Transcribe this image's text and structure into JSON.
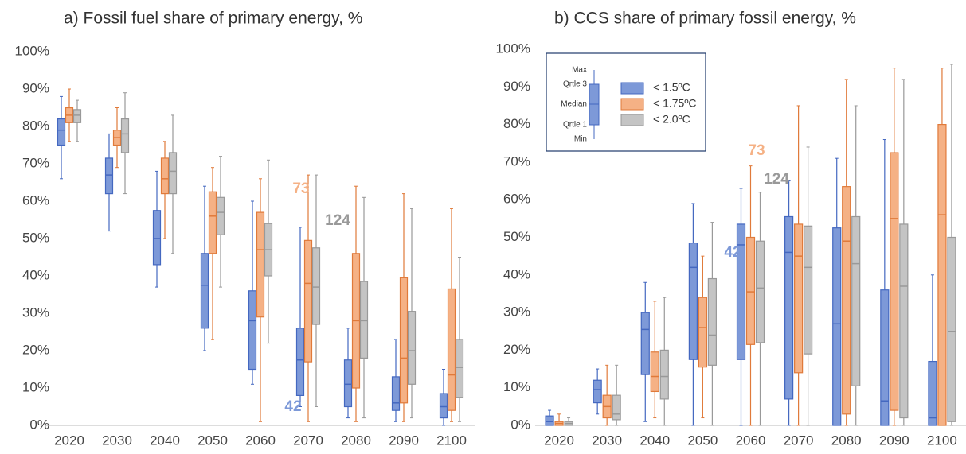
{
  "chart_data": [
    {
      "type": "box",
      "title": "a) Fossil fuel share of primary energy, %",
      "categories": [
        "2020",
        "2030",
        "2040",
        "2050",
        "2060",
        "2070",
        "2080",
        "2090",
        "2100"
      ],
      "ylim": [
        0,
        100
      ],
      "yticks": [
        {
          "value": 0,
          "label": "0%"
        },
        {
          "value": 10,
          "label": "10%"
        },
        {
          "value": 20,
          "label": "20%"
        },
        {
          "value": 30,
          "label": "30%"
        },
        {
          "value": 40,
          "label": "40%"
        },
        {
          "value": 50,
          "label": "50%"
        },
        {
          "value": 60,
          "label": "60%"
        },
        {
          "value": 70,
          "label": "70%"
        },
        {
          "value": 80,
          "label": "80%"
        },
        {
          "value": 90,
          "label": "90%"
        },
        {
          "value": 100,
          "label": "100%"
        }
      ],
      "grid": false,
      "series": [
        {
          "color": "#7d99d8",
          "edge_color": "#4468c0",
          "annotation": "42",
          "min": [
            66,
            52,
            37,
            20,
            11,
            5,
            2,
            1,
            0
          ],
          "q1": [
            75,
            62,
            43,
            26,
            15,
            8,
            5,
            4,
            2
          ],
          "median": [
            79,
            67,
            50,
            37.5,
            28,
            17.5,
            11,
            6,
            5
          ],
          "q3": [
            82,
            71.5,
            57.5,
            46,
            36,
            26,
            17.5,
            13,
            8.5
          ],
          "max": [
            88,
            78,
            68,
            64,
            60,
            53,
            26,
            23,
            15
          ]
        },
        {
          "color": "#f5b185",
          "edge_color": "#e07a3a",
          "annotation": "73",
          "min": [
            76,
            69,
            50,
            23,
            1,
            1,
            1,
            1,
            1
          ],
          "q1": [
            81,
            75,
            62,
            46,
            29,
            17,
            10,
            6,
            4
          ],
          "median": [
            83,
            77,
            66,
            56,
            47,
            38,
            28,
            18,
            13.5
          ],
          "q3": [
            85,
            79,
            71.5,
            62.5,
            57,
            49.5,
            46,
            39.5,
            36.5
          ],
          "max": [
            90,
            85,
            76,
            69,
            66,
            67,
            64,
            62,
            58
          ]
        },
        {
          "color": "#c4c4c4",
          "edge_color": "#999999",
          "annotation": "124",
          "min": [
            76,
            62,
            46,
            37,
            22,
            5,
            2,
            2,
            1
          ],
          "q1": [
            81,
            73,
            62,
            51,
            40,
            27,
            18,
            11,
            7.5
          ],
          "median": [
            83,
            78,
            68,
            57,
            47,
            37,
            28,
            20,
            15.5
          ],
          "q3": [
            84.5,
            82,
            73,
            61,
            54,
            47.5,
            38.5,
            30.5,
            23
          ],
          "max": [
            87,
            89,
            83,
            72,
            71,
            67,
            61,
            58,
            45
          ]
        }
      ]
    },
    {
      "type": "box",
      "title": "b) CCS share of primary fossil energy, %",
      "categories": [
        "2020",
        "2030",
        "2040",
        "2050",
        "2060",
        "2070",
        "2080",
        "2090",
        "2100"
      ],
      "ylim": [
        0,
        100
      ],
      "yticks": [
        {
          "value": 0,
          "label": "0%"
        },
        {
          "value": 10,
          "label": "10%"
        },
        {
          "value": 20,
          "label": "20%"
        },
        {
          "value": 30,
          "label": "30%"
        },
        {
          "value": 40,
          "label": "40%"
        },
        {
          "value": 50,
          "label": "50%"
        },
        {
          "value": 60,
          "label": "60%"
        },
        {
          "value": 70,
          "label": "70%"
        },
        {
          "value": 80,
          "label": "80%"
        },
        {
          "value": 90,
          "label": "90%"
        },
        {
          "value": 100,
          "label": "100%"
        }
      ],
      "grid": false,
      "legend_key": {
        "max": "Max",
        "q3": "Qrtle 3",
        "median": "Median",
        "q1": "Qrtle 1",
        "min": "Min"
      },
      "series": [
        {
          "name": "< 1.5ºC",
          "color": "#7d99d8",
          "edge_color": "#4468c0",
          "annotation": "42",
          "min": [
            0,
            3,
            1,
            0,
            0,
            0,
            0,
            0,
            0
          ],
          "q1": [
            0,
            6,
            13.5,
            17.5,
            17.5,
            7,
            0,
            0,
            0
          ],
          "median": [
            1,
            9.5,
            25.5,
            42,
            48,
            46,
            27,
            6.5,
            2
          ],
          "q3": [
            2.5,
            12,
            30,
            48.5,
            53.5,
            55.5,
            52.5,
            36,
            17
          ],
          "max": [
            4,
            15,
            38,
            59,
            63,
            65,
            71,
            76,
            40
          ]
        },
        {
          "name": "< 1.75ºC",
          "color": "#f5b185",
          "edge_color": "#e07a3a",
          "annotation": "73",
          "min": [
            0,
            0,
            2,
            2,
            0,
            0,
            0,
            0,
            0
          ],
          "q1": [
            0,
            2,
            9,
            15.5,
            21.5,
            14,
            3,
            4,
            0
          ],
          "median": [
            0.5,
            5,
            13,
            26,
            35.5,
            45,
            49,
            55,
            56
          ],
          "q3": [
            1,
            8,
            19.5,
            34,
            50,
            53.5,
            63.5,
            72.5,
            80
          ],
          "max": [
            3,
            16,
            33,
            45,
            69,
            85,
            92,
            95,
            95
          ]
        },
        {
          "name": "< 2.0ºC",
          "color": "#c4c4c4",
          "edge_color": "#999999",
          "annotation": "124",
          "min": [
            0,
            0,
            0,
            0,
            0,
            0,
            0,
            0,
            0
          ],
          "q1": [
            0,
            1.5,
            7,
            16,
            22,
            19,
            10.5,
            2,
            1
          ],
          "median": [
            0.5,
            3,
            13,
            24,
            36.5,
            42,
            43,
            37,
            25
          ],
          "q3": [
            1,
            8,
            20,
            39,
            49,
            53,
            55.5,
            53.5,
            50
          ],
          "max": [
            2,
            16,
            34,
            54,
            62,
            74,
            85,
            92,
            96
          ]
        }
      ]
    }
  ]
}
